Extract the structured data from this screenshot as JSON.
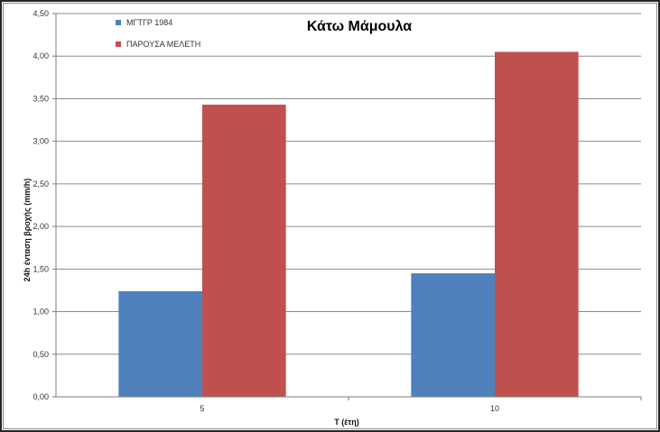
{
  "chart_data": {
    "type": "bar",
    "title": "Κάτω Μάμουλα",
    "xlabel": "Τ (έτη)",
    "ylabel": "24h ένταση βροχής (mm/h)",
    "categories": [
      "5",
      "10"
    ],
    "series": [
      {
        "name": "ΜΓΤΓΡ 1984",
        "color": "#4f81bd",
        "values": [
          1.24,
          1.45
        ]
      },
      {
        "name": "ΠΑΡΟΥΣΑ ΜΕΛΕΤΗ",
        "color": "#c0504d",
        "values": [
          3.43,
          4.05
        ]
      }
    ],
    "ylim": [
      0,
      4.5
    ],
    "yticks": [
      "0,00",
      "0,50",
      "1,00",
      "1,50",
      "2,00",
      "2,50",
      "3,00",
      "3,50",
      "4,00",
      "4,50"
    ],
    "grid": true,
    "legend_position": "top-left"
  }
}
